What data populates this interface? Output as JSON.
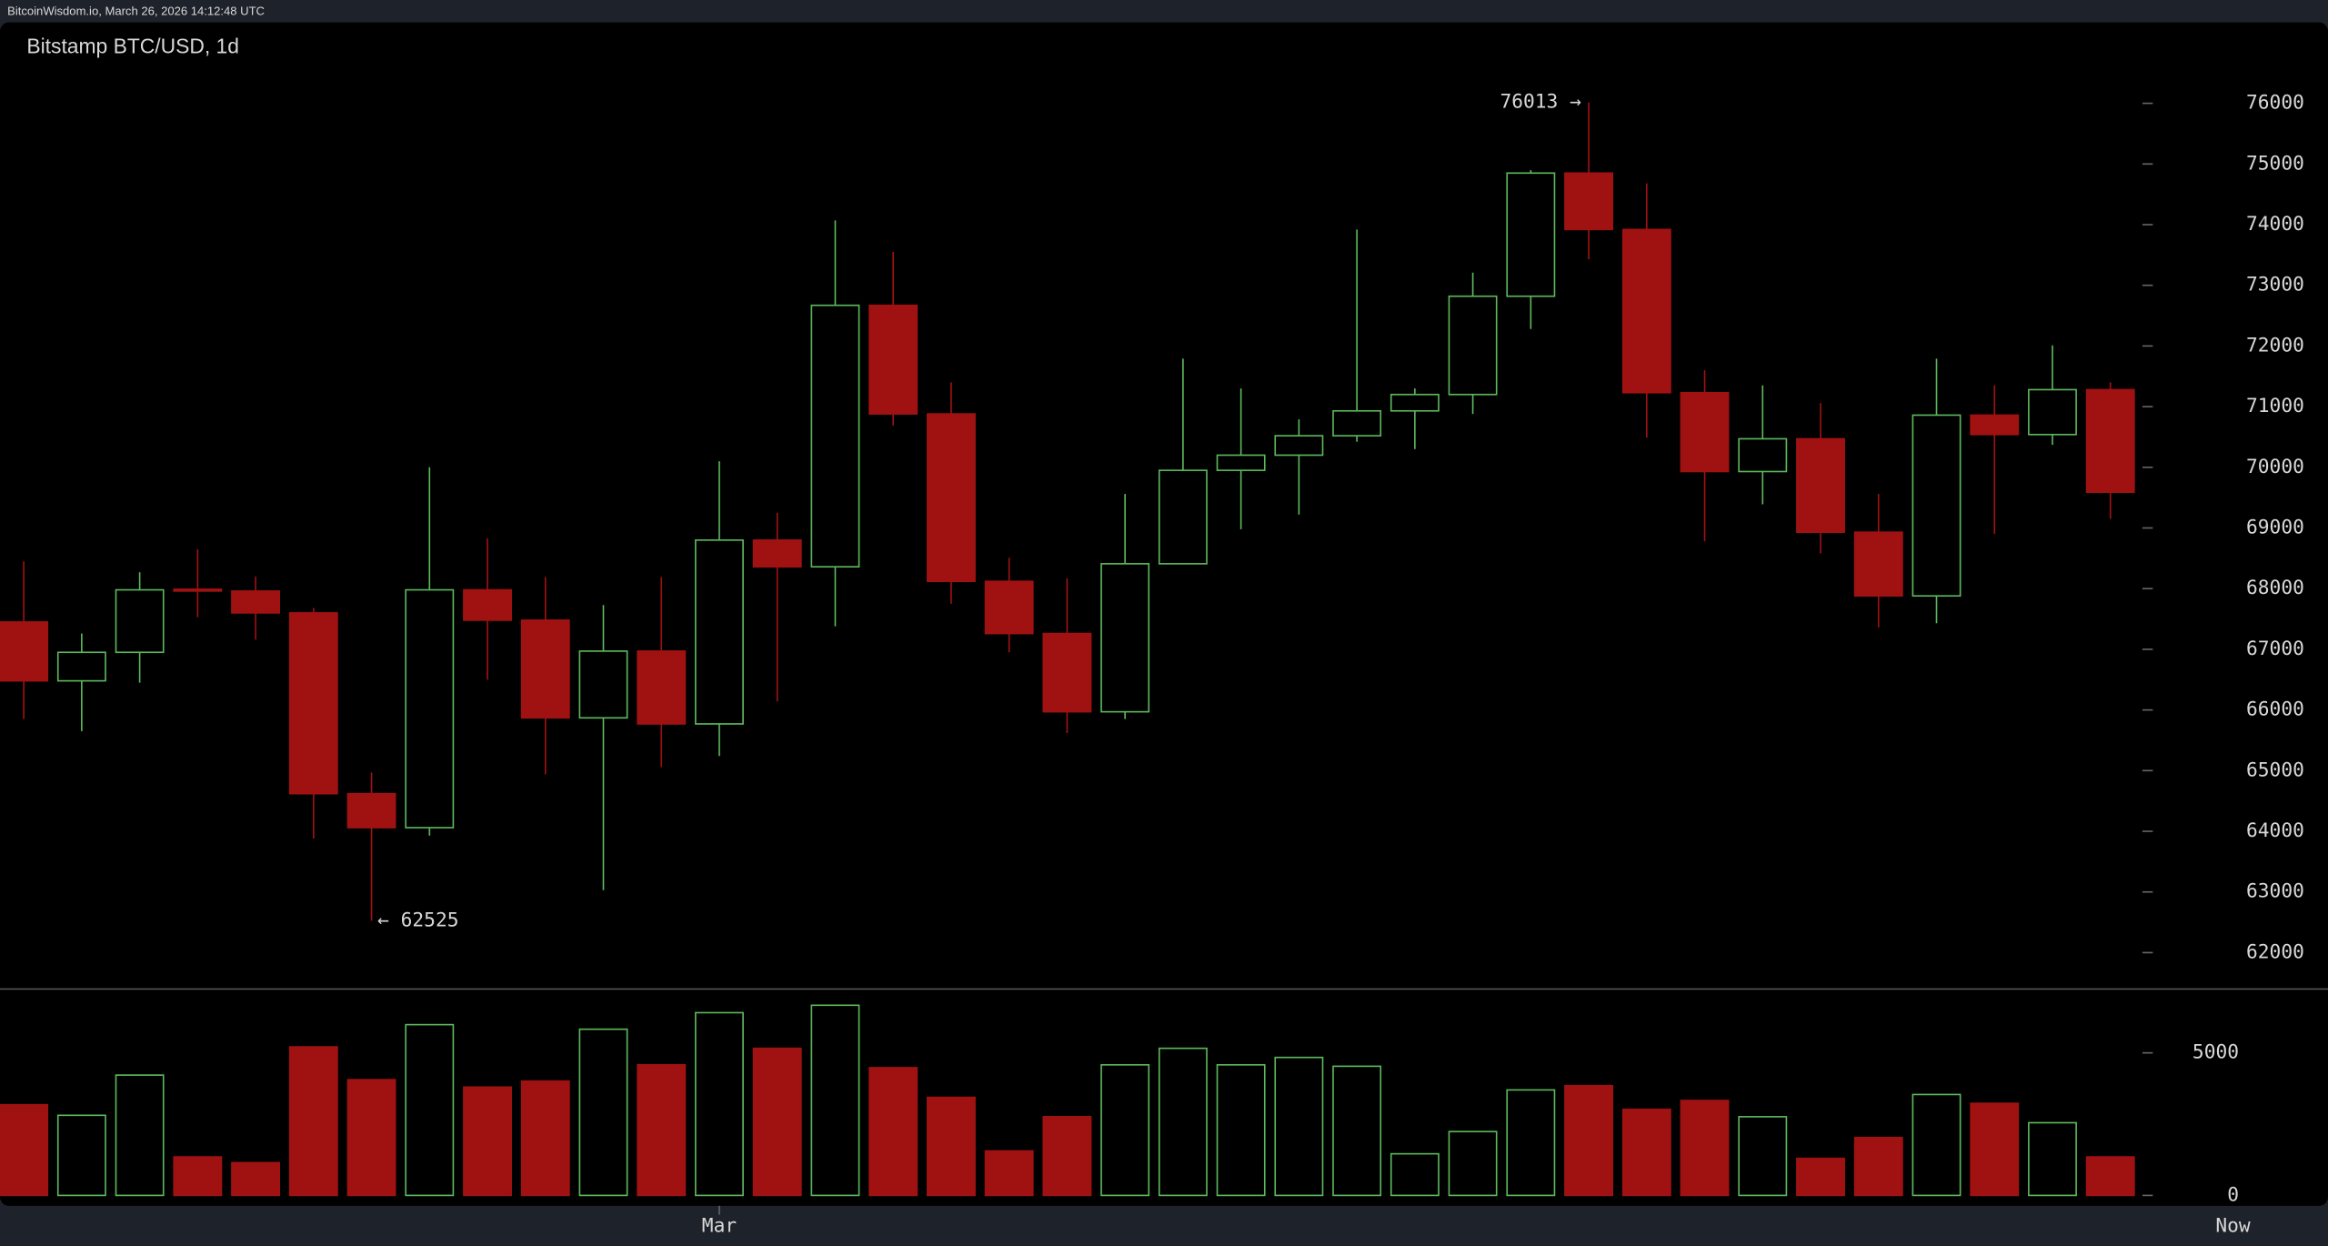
{
  "header": {
    "text": "BitcoinWisdom.io, March 26, 2026 14:12:48 UTC"
  },
  "chart_data": {
    "type": "candlestick",
    "title": "Bitstamp BTC/USD, 1d",
    "categories": [
      null,
      null,
      null,
      null,
      null,
      null,
      null,
      null,
      null,
      null,
      null,
      null,
      "Mar",
      null,
      null,
      null,
      null,
      null,
      null,
      null,
      null,
      null,
      null,
      null,
      null,
      null,
      null,
      null,
      null,
      null,
      null,
      null,
      null,
      null,
      null,
      null,
      null
    ],
    "end_label": "Now",
    "open": [
      67450,
      66480,
      66950,
      67990,
      67960,
      67600,
      64620,
      64060,
      67980,
      67480,
      65870,
      66970,
      65770,
      68800,
      68360,
      72670,
      70880,
      68120,
      67260,
      65970,
      68410,
      69950,
      70200,
      70520,
      70930,
      71200,
      72820,
      74850,
      73920,
      71230,
      69930,
      70470,
      68930,
      67880,
      70860,
      70540,
      71280
    ],
    "high": [
      68450,
      67260,
      68270,
      68650,
      68200,
      67680,
      64970,
      70000,
      68830,
      68190,
      67730,
      68190,
      70100,
      69250,
      74070,
      73550,
      71400,
      68510,
      68170,
      69560,
      71790,
      71300,
      70790,
      73920,
      71300,
      73210,
      74900,
      76013,
      74680,
      71600,
      71350,
      71060,
      69560,
      71790,
      71350,
      72010,
      71400
    ],
    "low": [
      65850,
      65650,
      66450,
      67530,
      67160,
      63880,
      62525,
      63930,
      66500,
      64940,
      63030,
      65060,
      65240,
      66140,
      67380,
      70690,
      67750,
      66950,
      65620,
      65850,
      68400,
      68980,
      69220,
      70420,
      70300,
      70880,
      72280,
      73430,
      70490,
      68780,
      69390,
      68580,
      67360,
      67430,
      68900,
      70370,
      69150
    ],
    "close": [
      66480,
      66950,
      67980,
      67960,
      67600,
      64620,
      64060,
      67980,
      67480,
      65870,
      66970,
      65770,
      68800,
      68360,
      72670,
      70880,
      68120,
      67260,
      65970,
      68410,
      69950,
      70200,
      70520,
      70930,
      71200,
      72820,
      74850,
      73920,
      71230,
      69930,
      70470,
      68930,
      67880,
      70860,
      70540,
      71280,
      69590
    ],
    "volume": [
      3180,
      2810,
      4220,
      1350,
      1150,
      5210,
      4060,
      5990,
      3800,
      4010,
      5830,
      4580,
      6410,
      5160,
      6670,
      4480,
      3440,
      1560,
      2760,
      4580,
      5160,
      4580,
      4840,
      4530,
      1460,
      2240,
      3700,
      3850,
      3020,
      3330,
      2760,
      1300,
      2030,
      3540,
      3230,
      2550,
      1350
    ],
    "up_color": "#5cb85c",
    "down_color": "#a01212",
    "ylim": [
      61400,
      76600
    ],
    "yticks": [
      62000,
      63000,
      64000,
      65000,
      66000,
      67000,
      68000,
      69000,
      70000,
      71000,
      72000,
      73000,
      74000,
      75000,
      76000
    ],
    "volume_ylim": [
      0,
      7000
    ],
    "volume_ticks": [
      0,
      5000
    ],
    "annotations": [
      {
        "text": "76013 →",
        "value": 76013
      },
      {
        "text": "← 62525",
        "value": 62525
      }
    ]
  }
}
